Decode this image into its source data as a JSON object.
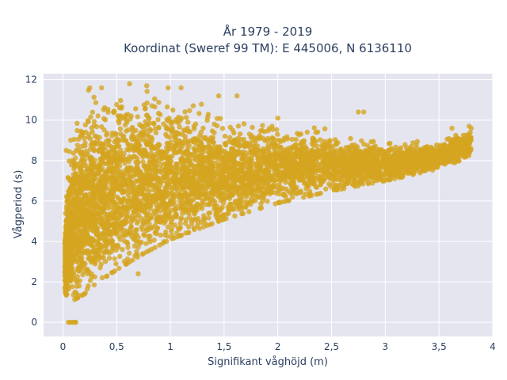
{
  "chart_data": {
    "type": "scatter",
    "title_line1": "År 1979 - 2019",
    "title_line2": "Koordinat (Sweref 99 TM): E 445006, N 6136110",
    "xlabel": "Signifikant våghöjd (m)",
    "ylabel": "Vågperiod (s)",
    "xlim": [
      -0.18,
      4.0
    ],
    "ylim": [
      -0.7,
      12.3
    ],
    "xticks": [
      0,
      0.5,
      1,
      1.5,
      2,
      2.5,
      3,
      3.5,
      4
    ],
    "xtick_labels": [
      "0",
      "0,5",
      "1",
      "1,5",
      "2",
      "2,5",
      "3",
      "3,5",
      "4"
    ],
    "yticks": [
      0,
      2,
      4,
      6,
      8,
      10,
      12
    ],
    "ytick_labels": [
      "0",
      "2",
      "4",
      "6",
      "8",
      "10",
      "12"
    ],
    "grid": true,
    "point_color": "#D4A520",
    "plot_background": "#E5E5F0",
    "envelope": {
      "x": [
        0.02,
        0.05,
        0.1,
        0.2,
        0.3,
        0.5,
        0.75,
        1.0,
        1.5,
        2.0,
        2.5,
        3.0,
        3.5,
        3.8
      ],
      "y_low": [
        1.5,
        1.1,
        1.1,
        1.4,
        1.9,
        2.6,
        3.4,
        4.1,
        5.1,
        5.9,
        6.5,
        7.0,
        7.6,
        8.2
      ],
      "y_high": [
        5.0,
        8.5,
        10.0,
        11.4,
        11.6,
        11.7,
        11.8,
        11.6,
        10.2,
        10.1,
        9.6,
        9.0,
        9.0,
        9.7
      ]
    },
    "points": [
      {
        "x": 0.05,
        "y": 0
      },
      {
        "x": 0.07,
        "y": 0
      },
      {
        "x": 0.09,
        "y": 0
      },
      {
        "x": 0.11,
        "y": 0
      },
      {
        "x": 0.12,
        "y": 0
      },
      {
        "x": 0.25,
        "y": 11.6
      },
      {
        "x": 0.36,
        "y": 11.6
      },
      {
        "x": 0.62,
        "y": 11.8
      },
      {
        "x": 0.78,
        "y": 11.7
      },
      {
        "x": 0.98,
        "y": 11.6
      },
      {
        "x": 1.1,
        "y": 11.6
      },
      {
        "x": 1.45,
        "y": 11.2
      },
      {
        "x": 1.62,
        "y": 11.2
      },
      {
        "x": 2.0,
        "y": 10.1
      },
      {
        "x": 2.75,
        "y": 10.4
      },
      {
        "x": 2.8,
        "y": 10.4
      },
      {
        "x": 3.62,
        "y": 9.6
      },
      {
        "x": 3.78,
        "y": 9.7
      },
      {
        "x": 3.8,
        "y": 9.6
      },
      {
        "x": 3.72,
        "y": 8.8
      },
      {
        "x": 3.55,
        "y": 8.8
      },
      {
        "x": 0.7,
        "y": 2.4
      },
      {
        "x": 0.02,
        "y": 1.7
      },
      {
        "x": 0.03,
        "y": 8.5
      },
      {
        "x": 0.06,
        "y": 3.9
      }
    ]
  }
}
